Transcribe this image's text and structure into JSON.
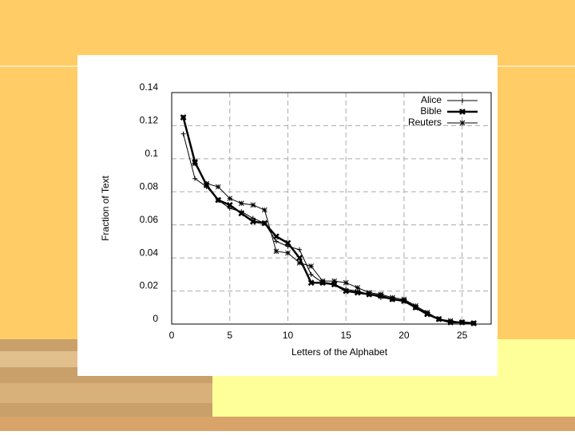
{
  "chart_data": {
    "type": "line",
    "x_label": "Letters of the Alphabet",
    "y_label": "Fraction of Text",
    "x": [
      1,
      2,
      3,
      4,
      5,
      6,
      7,
      8,
      9,
      10,
      11,
      12,
      13,
      14,
      15,
      16,
      17,
      18,
      19,
      20,
      21,
      22,
      23,
      24,
      25,
      26
    ],
    "series": [
      {
        "name": "Alice",
        "color": "#000000",
        "line_width": 1,
        "marker": "+",
        "values": [
          0.115,
          0.088,
          0.083,
          0.075,
          0.07,
          0.068,
          0.064,
          0.061,
          0.05,
          0.047,
          0.045,
          0.03,
          0.025,
          0.024,
          0.021,
          0.02,
          0.018,
          0.016,
          0.015,
          0.014,
          0.01,
          0.007,
          0.003,
          0.001,
          0.001,
          0.0005
        ]
      },
      {
        "name": "Bible",
        "color": "#000000",
        "line_width": 2.5,
        "marker": "x",
        "values": [
          0.125,
          0.098,
          0.084,
          0.075,
          0.072,
          0.067,
          0.062,
          0.061,
          0.053,
          0.049,
          0.04,
          0.025,
          0.025,
          0.024,
          0.02,
          0.019,
          0.018,
          0.017,
          0.015,
          0.014,
          0.01,
          0.006,
          0.003,
          0.001,
          0.001,
          0.0005
        ]
      },
      {
        "name": "Reuters",
        "color": "#000000",
        "line_width": 1,
        "marker": "*",
        "values": [
          0.125,
          0.097,
          0.085,
          0.083,
          0.076,
          0.073,
          0.072,
          0.069,
          0.044,
          0.043,
          0.037,
          0.035,
          0.026,
          0.026,
          0.025,
          0.022,
          0.019,
          0.018,
          0.016,
          0.015,
          0.011,
          0.007,
          0.003,
          0.002,
          0.001,
          0.0005
        ]
      }
    ],
    "xlim": [
      0,
      27.5
    ],
    "xticks": [
      0,
      5,
      10,
      15,
      20,
      25
    ],
    "ylim": [
      0,
      0.14
    ],
    "yticks": [
      0,
      0.02,
      0.04,
      0.06,
      0.08,
      0.1,
      0.12,
      0.14
    ],
    "grid": true,
    "legend": "top-right"
  }
}
